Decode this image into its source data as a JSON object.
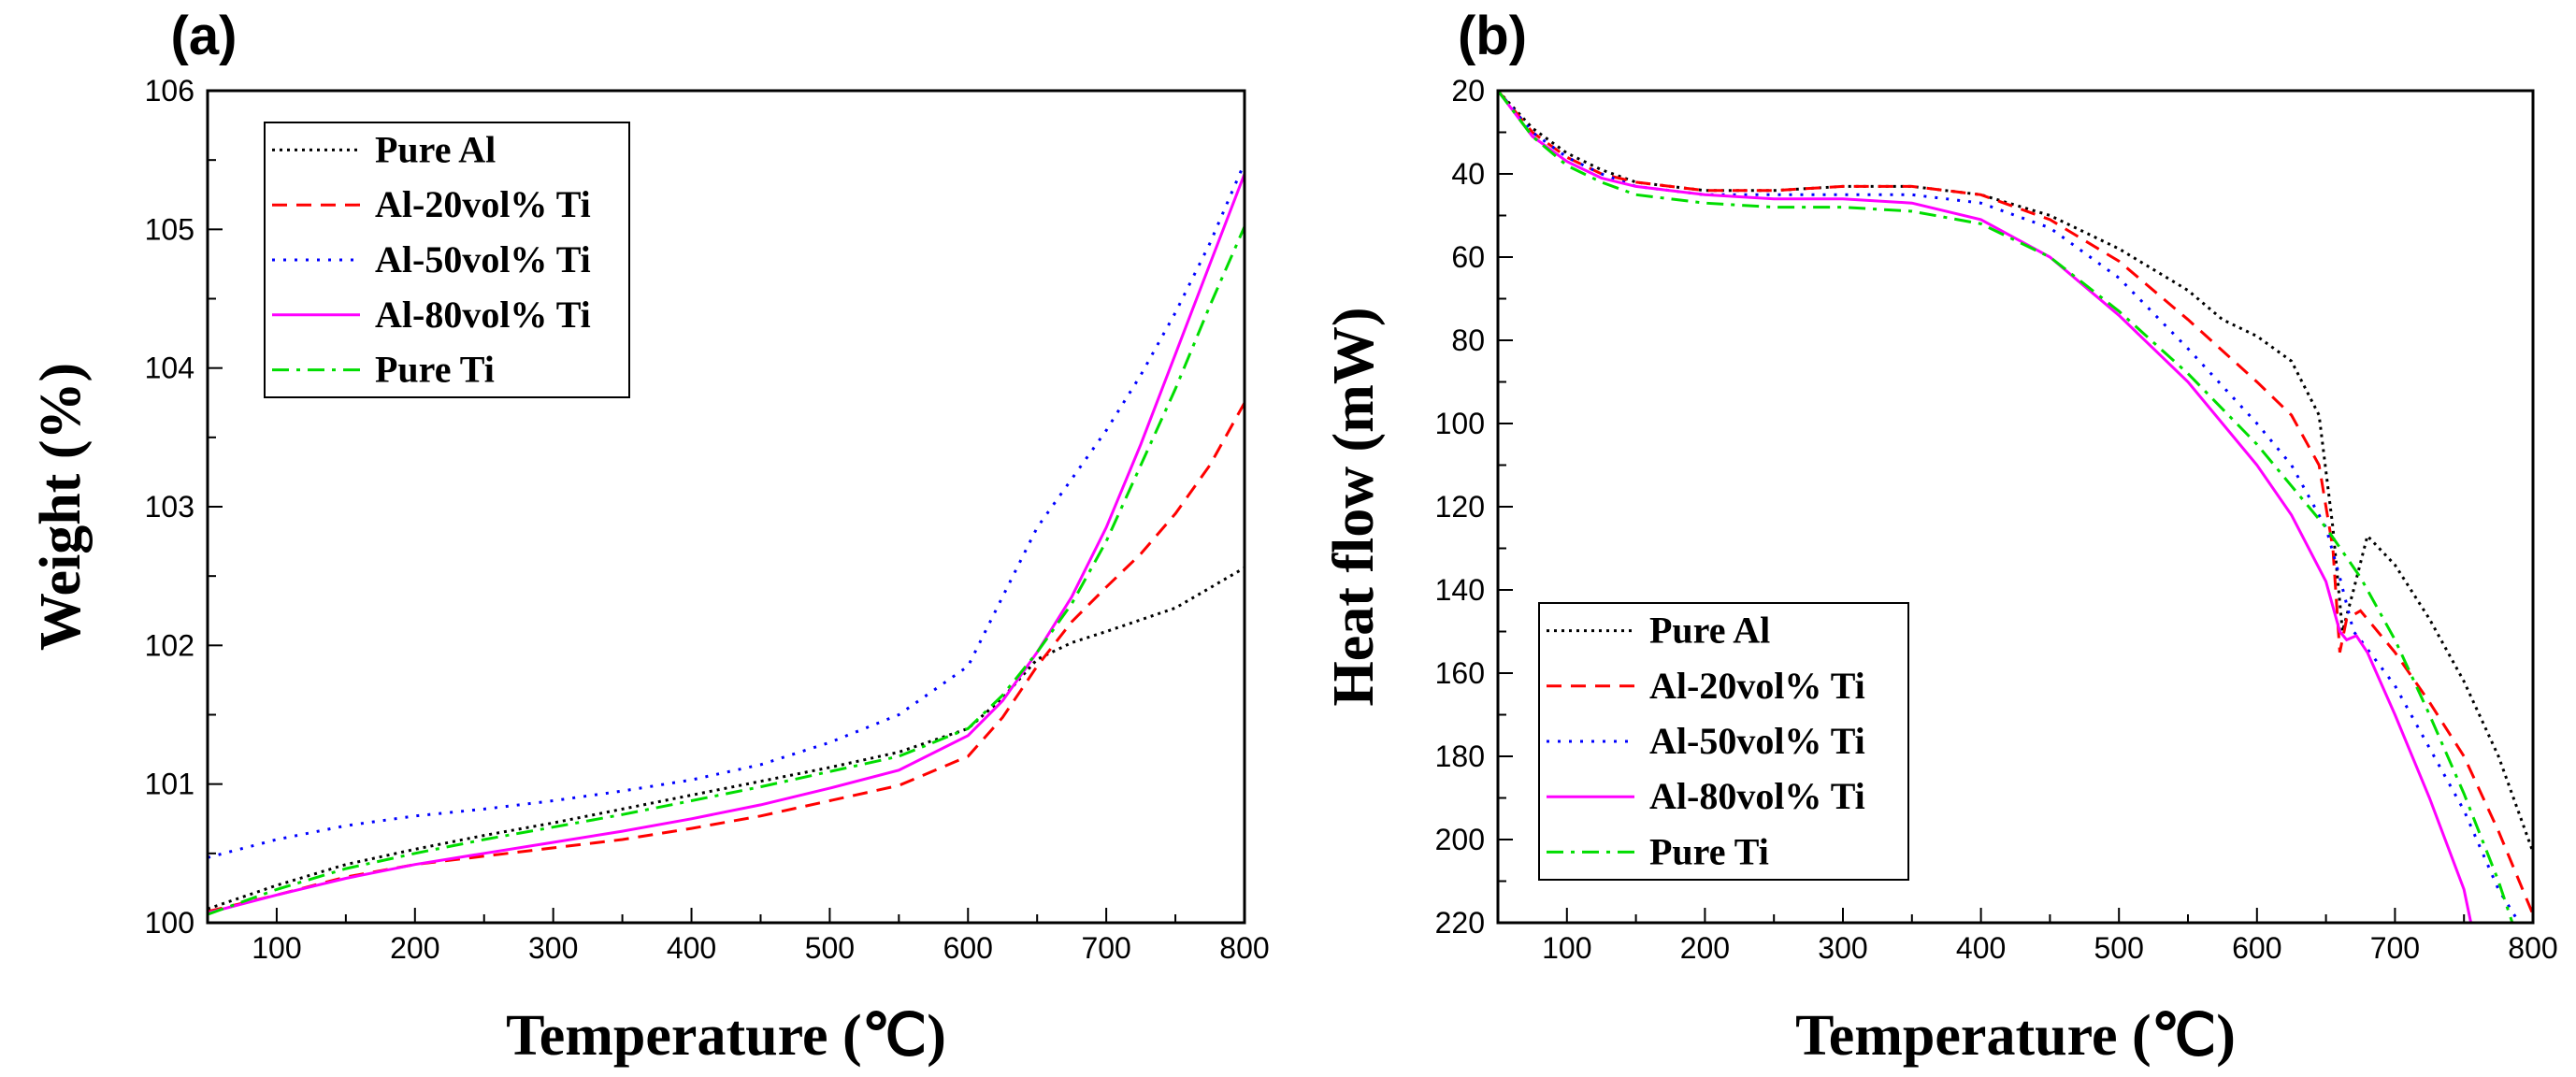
{
  "chart_data": [
    {
      "panel_label": "(a)",
      "type": "line",
      "xlabel": "Temperature (℃)",
      "ylabel": "Weight (%)",
      "xlim": [
        50,
        800
      ],
      "ylim": [
        100,
        106
      ],
      "y_reversed": false,
      "x_ticks": [
        "100",
        "200",
        "300",
        "400",
        "500",
        "600",
        "700",
        "800"
      ],
      "x_tick_values": [
        100,
        200,
        300,
        400,
        500,
        600,
        700,
        800
      ],
      "y_ticks": [
        "100",
        "101",
        "102",
        "103",
        "104",
        "105",
        "106"
      ],
      "y_tick_values": [
        100,
        101,
        102,
        103,
        104,
        105,
        106
      ],
      "grid": false,
      "legend_position": "top-left",
      "series": [
        {
          "name": "Pure Al",
          "color": "#000000",
          "dash": "dot",
          "x": [
            50,
            100,
            150,
            200,
            250,
            300,
            350,
            400,
            450,
            500,
            550,
            600,
            625,
            650,
            675,
            700,
            750,
            800
          ],
          "y": [
            100.1,
            100.27,
            100.42,
            100.53,
            100.63,
            100.72,
            100.82,
            100.92,
            101.02,
            101.12,
            101.23,
            101.4,
            101.62,
            101.9,
            102.02,
            102.1,
            102.27,
            102.56
          ]
        },
        {
          "name": "Al-20vol% Ti",
          "color": "#ff0000",
          "dash": "dash",
          "x": [
            50,
            100,
            150,
            200,
            250,
            300,
            350,
            400,
            450,
            500,
            550,
            600,
            625,
            650,
            675,
            700,
            725,
            750,
            775,
            800
          ],
          "y": [
            100.08,
            100.2,
            100.33,
            100.42,
            100.48,
            100.54,
            100.6,
            100.68,
            100.77,
            100.88,
            100.99,
            101.2,
            101.48,
            101.85,
            102.17,
            102.42,
            102.66,
            102.95,
            103.3,
            103.75
          ]
        },
        {
          "name": "Al-50vol% Ti",
          "color": "#0000ff",
          "dash": "dotfine",
          "x": [
            50,
            100,
            150,
            200,
            250,
            300,
            350,
            400,
            450,
            500,
            550,
            600,
            625,
            650,
            675,
            700,
            725,
            750,
            775,
            800
          ],
          "y": [
            100.47,
            100.6,
            100.7,
            100.77,
            100.82,
            100.88,
            100.95,
            101.03,
            101.14,
            101.3,
            101.5,
            101.85,
            102.35,
            102.85,
            103.2,
            103.55,
            103.95,
            104.4,
            104.9,
            105.48
          ]
        },
        {
          "name": "Al-80vol% Ti",
          "color": "#ff00ff",
          "dash": "solid",
          "x": [
            50,
            100,
            150,
            200,
            250,
            300,
            350,
            400,
            450,
            500,
            550,
            600,
            625,
            650,
            675,
            700,
            725,
            750,
            775,
            800
          ],
          "y": [
            100.07,
            100.2,
            100.32,
            100.42,
            100.5,
            100.58,
            100.66,
            100.75,
            100.85,
            100.97,
            101.1,
            101.35,
            101.6,
            101.95,
            102.35,
            102.85,
            103.45,
            104.1,
            104.75,
            105.4
          ]
        },
        {
          "name": "Pure Ti",
          "color": "#00dd00",
          "dash": "dashdot",
          "x": [
            50,
            100,
            150,
            200,
            250,
            300,
            350,
            400,
            450,
            500,
            550,
            600,
            625,
            650,
            675,
            700,
            725,
            750,
            775,
            800
          ],
          "y": [
            100.06,
            100.24,
            100.39,
            100.5,
            100.6,
            100.69,
            100.78,
            100.88,
            100.98,
            101.09,
            101.2,
            101.4,
            101.64,
            101.95,
            102.3,
            102.75,
            103.3,
            103.85,
            104.45,
            105.02
          ]
        }
      ]
    },
    {
      "panel_label": "(b)",
      "type": "line",
      "xlabel": "Temperature (℃)",
      "ylabel": "Heat flow (mW)",
      "xlim": [
        50,
        800
      ],
      "ylim": [
        20,
        220
      ],
      "y_reversed": true,
      "x_ticks": [
        "100",
        "200",
        "300",
        "400",
        "500",
        "600",
        "700",
        "800"
      ],
      "x_tick_values": [
        100,
        200,
        300,
        400,
        500,
        600,
        700,
        800
      ],
      "y_ticks": [
        "20",
        "40",
        "60",
        "80",
        "100",
        "120",
        "140",
        "160",
        "180",
        "200",
        "220"
      ],
      "y_tick_values": [
        20,
        40,
        60,
        80,
        100,
        120,
        140,
        160,
        180,
        200,
        220
      ],
      "grid": false,
      "legend_position": "bottom-left",
      "series": [
        {
          "name": "Pure Al",
          "color": "#000000",
          "dash": "dot",
          "x": [
            50,
            75,
            100,
            125,
            150,
            200,
            250,
            300,
            350,
            400,
            450,
            500,
            550,
            575,
            600,
            625,
            645,
            655,
            662,
            670,
            680,
            700,
            725,
            750,
            775,
            800
          ],
          "y": [
            20,
            29,
            35,
            39,
            42,
            44,
            44,
            43,
            43,
            45,
            50,
            58,
            68,
            75,
            79,
            85,
            98,
            125,
            150,
            140,
            127,
            134,
            147,
            162,
            180,
            203
          ]
        },
        {
          "name": "Al-20vol% Ti",
          "color": "#ff0000",
          "dash": "dash",
          "x": [
            50,
            75,
            100,
            125,
            150,
            200,
            250,
            300,
            350,
            400,
            450,
            500,
            550,
            600,
            625,
            645,
            655,
            660,
            665,
            675,
            700,
            725,
            750,
            775,
            800
          ],
          "y": [
            20,
            30,
            36,
            40,
            42,
            44,
            44,
            43,
            43,
            45,
            51,
            61,
            75,
            90,
            98,
            110,
            130,
            155,
            147,
            145,
            155,
            167,
            180,
            198,
            218
          ]
        },
        {
          "name": "Al-50vol% Ti",
          "color": "#0000ff",
          "dash": "dotfine",
          "x": [
            50,
            75,
            100,
            125,
            150,
            200,
            250,
            300,
            350,
            400,
            450,
            500,
            550,
            600,
            625,
            650,
            660,
            670,
            675,
            700,
            725,
            750,
            775,
            790
          ],
          "y": [
            20,
            30,
            36,
            40,
            43,
            45,
            45,
            45,
            45,
            47,
            53,
            65,
            82,
            100,
            110,
            125,
            137,
            150,
            152,
            163,
            178,
            193,
            212,
            220
          ]
        },
        {
          "name": "Al-80vol% Ti",
          "color": "#ff00ff",
          "dash": "solid",
          "x": [
            50,
            75,
            100,
            125,
            150,
            200,
            250,
            300,
            350,
            400,
            450,
            500,
            550,
            600,
            625,
            650,
            660,
            665,
            672,
            680,
            700,
            725,
            750,
            755
          ],
          "y": [
            20,
            31,
            37,
            41,
            43,
            45,
            46,
            46,
            47,
            51,
            60,
            74,
            90,
            110,
            122,
            138,
            150,
            152,
            151,
            155,
            170,
            190,
            212,
            220
          ]
        },
        {
          "name": "Pure Ti",
          "color": "#00dd00",
          "dash": "dashdot",
          "x": [
            50,
            75,
            100,
            125,
            150,
            200,
            250,
            300,
            350,
            400,
            450,
            500,
            550,
            600,
            625,
            650,
            675,
            700,
            725,
            750,
            775,
            785
          ],
          "y": [
            20,
            31,
            38,
            42,
            45,
            47,
            48,
            48,
            49,
            52,
            60,
            73,
            88,
            105,
            115,
            125,
            137,
            152,
            170,
            189,
            210,
            220
          ]
        }
      ]
    }
  ]
}
